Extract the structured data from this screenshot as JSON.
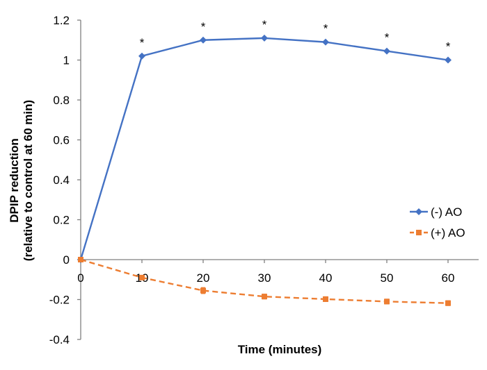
{
  "chart_data": {
    "type": "line",
    "title": "",
    "xlabel": "Time (minutes)",
    "ylabel_line1": "DPIP reduction",
    "ylabel_line2": "(relative to control at 60 min)",
    "x": [
      0,
      10,
      20,
      30,
      40,
      50,
      60
    ],
    "x_ticks": [
      "0",
      "10",
      "20",
      "30",
      "40",
      "50",
      "60"
    ],
    "xlim": [
      0,
      65
    ],
    "ylim": [
      -0.4,
      1.2
    ],
    "y_ticks": [
      -0.4,
      -0.2,
      0,
      0.2,
      0.4,
      0.6,
      0.8,
      1,
      1.2
    ],
    "y_tick_labels": [
      "-0.4",
      "-0.2",
      "0",
      "0.2",
      "0.4",
      "0.6",
      "0.8",
      "1",
      "1.2"
    ],
    "grid": false,
    "legend_position": "right",
    "series": [
      {
        "name": "(-) AO",
        "values": [
          0,
          1.02,
          1.1,
          1.11,
          1.09,
          1.045,
          1.0
        ],
        "errors": [
          0.005,
          0.005,
          0.005,
          0.005,
          0.005,
          0.005,
          0.005
        ],
        "significance": [
          "",
          "*",
          "*",
          "*",
          "*",
          "*",
          "*"
        ],
        "color": "#4472C4",
        "style": "solid",
        "marker": "diamond"
      },
      {
        "name": "(+) AO",
        "values": [
          0,
          -0.09,
          -0.155,
          -0.185,
          -0.198,
          -0.21,
          -0.218
        ],
        "errors": [
          0.005,
          0.01,
          0.015,
          0.012,
          0.012,
          0.012,
          0.012
        ],
        "significance": [
          "",
          "",
          "",
          "",
          "",
          "",
          ""
        ],
        "color": "#ED7D31",
        "style": "dashed",
        "marker": "square"
      }
    ]
  }
}
